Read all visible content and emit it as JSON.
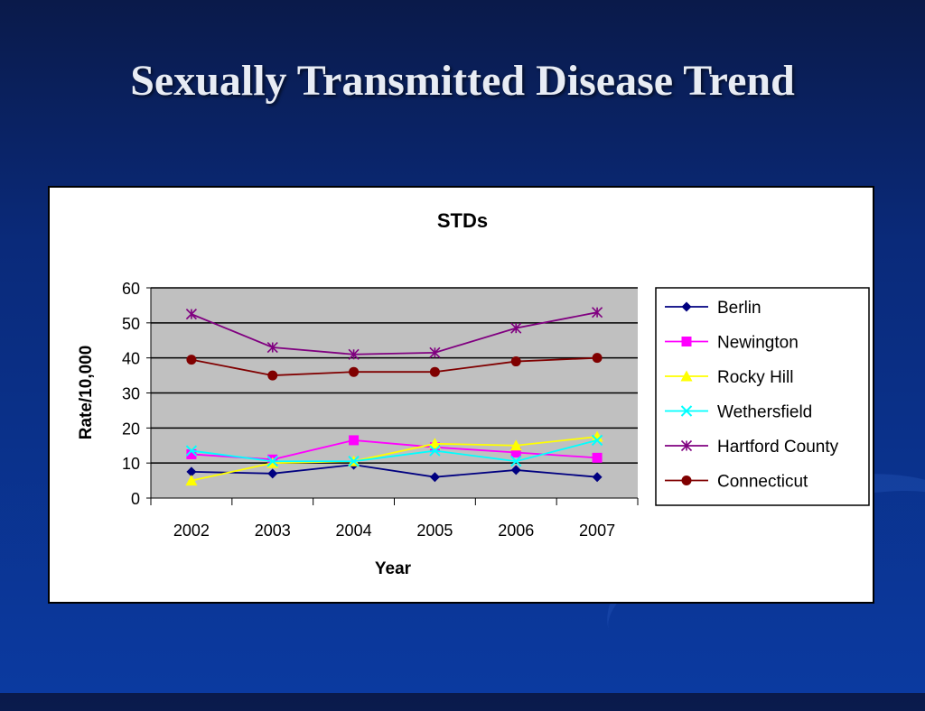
{
  "slide": {
    "title": "Sexually Transmitted Disease Trend"
  },
  "chart_data": {
    "type": "line",
    "title": "STDs",
    "xlabel": "Year",
    "ylabel": "Rate/10,000",
    "categories": [
      "2002",
      "2003",
      "2004",
      "2005",
      "2006",
      "2007"
    ],
    "ylim": [
      0,
      60
    ],
    "yticks": [
      0,
      10,
      20,
      30,
      40,
      50,
      60
    ],
    "grid": true,
    "legend": "right",
    "plot_background": "#c0c0c0",
    "series": [
      {
        "name": "Berlin",
        "color": "#000080",
        "marker": "diamond",
        "values": [
          7.5,
          7,
          9.5,
          6,
          8,
          6
        ]
      },
      {
        "name": "Newington",
        "color": "#ff00ff",
        "marker": "square",
        "values": [
          12.5,
          11,
          16.5,
          14.5,
          13,
          11.5
        ]
      },
      {
        "name": "Rocky Hill",
        "color": "#ffff00",
        "marker": "triangle",
        "values": [
          5,
          10,
          10.5,
          15.5,
          15,
          17.5
        ]
      },
      {
        "name": "Wethersfield",
        "color": "#00ffff",
        "marker": "x",
        "values": [
          13.5,
          10.5,
          10.5,
          13.5,
          10.5,
          16.5
        ]
      },
      {
        "name": "Hartford County",
        "color": "#800080",
        "marker": "star",
        "values": [
          52.5,
          43,
          41,
          41.5,
          48.5,
          53
        ]
      },
      {
        "name": "Connecticut",
        "color": "#800000",
        "marker": "circle",
        "values": [
          39.5,
          35,
          36,
          36,
          39,
          40
        ]
      }
    ]
  }
}
